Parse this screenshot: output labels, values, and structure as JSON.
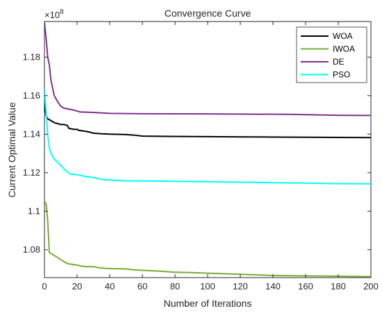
{
  "chart_data": {
    "type": "line",
    "title": "Convergence Curve",
    "xlabel": "Number of Iterations",
    "ylabel": "Current Optimal Value",
    "exponent_label": "×10",
    "exponent_power": "8",
    "scale": 100000000,
    "xlim": [
      0,
      200
    ],
    "ylim": [
      1.0655,
      1.1985
    ],
    "x_ticks": [
      0,
      20,
      40,
      60,
      80,
      100,
      120,
      140,
      160,
      180,
      200
    ],
    "y_ticks": [
      1.08,
      1.1,
      1.12,
      1.14,
      1.16,
      1.18
    ],
    "y_tick_labels": [
      "1.08",
      "1.1",
      "1.12",
      "1.14",
      "1.16",
      "1.18"
    ],
    "legend_position": "top-right",
    "grid": false,
    "series": [
      {
        "name": "WOA",
        "color": "#000000",
        "points": [
          [
            0,
            1.1555
          ],
          [
            1,
            1.1495
          ],
          [
            2,
            1.148
          ],
          [
            4,
            1.147
          ],
          [
            6,
            1.146
          ],
          [
            8,
            1.1455
          ],
          [
            10,
            1.145
          ],
          [
            12,
            1.145
          ],
          [
            14,
            1.1445
          ],
          [
            15,
            1.143
          ],
          [
            18,
            1.1425
          ],
          [
            20,
            1.1425
          ],
          [
            21,
            1.142
          ],
          [
            25,
            1.1415
          ],
          [
            28,
            1.141
          ],
          [
            30,
            1.1405
          ],
          [
            35,
            1.1402
          ],
          [
            40,
            1.14
          ],
          [
            50,
            1.1398
          ],
          [
            55,
            1.1395
          ],
          [
            60,
            1.139
          ],
          [
            80,
            1.1388
          ],
          [
            100,
            1.1387
          ],
          [
            120,
            1.1386
          ],
          [
            140,
            1.1385
          ],
          [
            160,
            1.1384
          ],
          [
            180,
            1.1383
          ],
          [
            200,
            1.1382
          ]
        ]
      },
      {
        "name": "IWOA",
        "color": "#77ac30",
        "points": [
          [
            0,
            1.105
          ],
          [
            1,
            1.104
          ],
          [
            2,
            1.095
          ],
          [
            3,
            1.0785
          ],
          [
            5,
            1.0775
          ],
          [
            6,
            1.077
          ],
          [
            8,
            1.076
          ],
          [
            10,
            1.0748
          ],
          [
            12,
            1.0738
          ],
          [
            14,
            1.0728
          ],
          [
            16,
            1.0725
          ],
          [
            20,
            1.072
          ],
          [
            22,
            1.0716
          ],
          [
            25,
            1.0712
          ],
          [
            30,
            1.0712
          ],
          [
            34,
            1.0705
          ],
          [
            40,
            1.0702
          ],
          [
            50,
            1.07
          ],
          [
            55,
            1.0695
          ],
          [
            60,
            1.0693
          ],
          [
            70,
            1.0689
          ],
          [
            80,
            1.0683
          ],
          [
            90,
            1.0681
          ],
          [
            100,
            1.0678
          ],
          [
            120,
            1.0672
          ],
          [
            140,
            1.0666
          ],
          [
            160,
            1.0664
          ],
          [
            180,
            1.0662
          ],
          [
            200,
            1.066
          ]
        ]
      },
      {
        "name": "DE",
        "color": "#7e2f8e",
        "points": [
          [
            0,
            1.198
          ],
          [
            1,
            1.19
          ],
          [
            2,
            1.18
          ],
          [
            3,
            1.176
          ],
          [
            4,
            1.168
          ],
          [
            5,
            1.164
          ],
          [
            6,
            1.16
          ],
          [
            8,
            1.157
          ],
          [
            10,
            1.1545
          ],
          [
            12,
            1.1535
          ],
          [
            15,
            1.153
          ],
          [
            18,
            1.1525
          ],
          [
            22,
            1.1515
          ],
          [
            30,
            1.1513
          ],
          [
            40,
            1.1508
          ],
          [
            60,
            1.1506
          ],
          [
            100,
            1.1505
          ],
          [
            150,
            1.1503
          ],
          [
            180,
            1.1498
          ],
          [
            200,
            1.1497
          ]
        ]
      },
      {
        "name": "PSO",
        "color": "#00ffff",
        "points": [
          [
            0,
            1.164
          ],
          [
            1,
            1.152
          ],
          [
            2,
            1.14
          ],
          [
            3,
            1.133
          ],
          [
            4,
            1.13
          ],
          [
            6,
            1.127
          ],
          [
            8,
            1.1255
          ],
          [
            10,
            1.124
          ],
          [
            12,
            1.122
          ],
          [
            14,
            1.1205
          ],
          [
            16,
            1.1192
          ],
          [
            20,
            1.119
          ],
          [
            25,
            1.118
          ],
          [
            30,
            1.1175
          ],
          [
            35,
            1.1165
          ],
          [
            40,
            1.1162
          ],
          [
            50,
            1.1158
          ],
          [
            60,
            1.1157
          ],
          [
            80,
            1.1155
          ],
          [
            100,
            1.1153
          ],
          [
            140,
            1.1148
          ],
          [
            160,
            1.1146
          ],
          [
            180,
            1.1143
          ],
          [
            200,
            1.1142
          ]
        ]
      }
    ]
  }
}
